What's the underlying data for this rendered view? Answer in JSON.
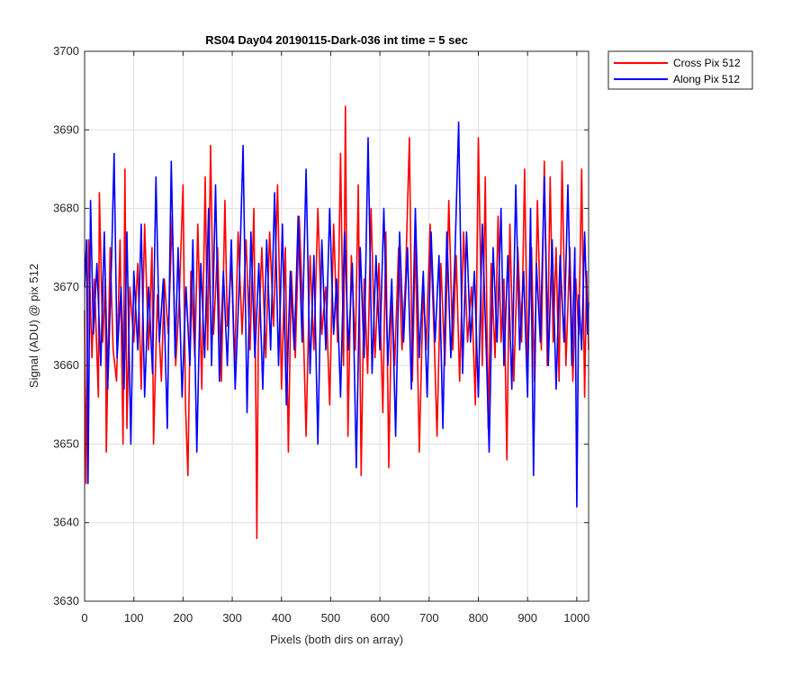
{
  "chart_data": {
    "type": "line",
    "title": "RS04 Day04 20190115-Dark-036 int time = 5 sec",
    "xlabel": "Pixels (both dirs on array)",
    "ylabel": "Signal (ADU) @ pix 512",
    "xlim": [
      0,
      1024
    ],
    "ylim": [
      3630,
      3700
    ],
    "xticks": [
      0,
      100,
      200,
      300,
      400,
      500,
      600,
      700,
      800,
      900,
      1000
    ],
    "yticks": [
      3630,
      3640,
      3650,
      3660,
      3670,
      3680,
      3690,
      3700
    ],
    "grid": true,
    "legend_position": "outside-top-right",
    "series": [
      {
        "name": "Cross Pix 512",
        "color": "#ff0000",
        "points": [
          [
            0,
            3667
          ],
          [
            3,
            3645
          ],
          [
            8,
            3676
          ],
          [
            15,
            3661
          ],
          [
            20,
            3671
          ],
          [
            28,
            3656
          ],
          [
            30,
            3682
          ],
          [
            37,
            3663
          ],
          [
            42,
            3671
          ],
          [
            44,
            3649
          ],
          [
            52,
            3675
          ],
          [
            58,
            3662
          ],
          [
            65,
            3658
          ],
          [
            72,
            3676
          ],
          [
            78,
            3650
          ],
          [
            82,
            3685
          ],
          [
            86,
            3652
          ],
          [
            92,
            3670
          ],
          [
            100,
            3663
          ],
          [
            108,
            3673
          ],
          [
            115,
            3657
          ],
          [
            122,
            3678
          ],
          [
            130,
            3662
          ],
          [
            137,
            3675
          ],
          [
            140,
            3650
          ],
          [
            148,
            3669
          ],
          [
            156,
            3658
          ],
          [
            162,
            3671
          ],
          [
            170,
            3664
          ],
          [
            178,
            3679
          ],
          [
            185,
            3660
          ],
          [
            192,
            3668
          ],
          [
            200,
            3683
          ],
          [
            205,
            3655
          ],
          [
            210,
            3646
          ],
          [
            216,
            3672
          ],
          [
            224,
            3661
          ],
          [
            230,
            3678
          ],
          [
            238,
            3657
          ],
          [
            245,
            3684
          ],
          [
            250,
            3662
          ],
          [
            256,
            3688
          ],
          [
            262,
            3664
          ],
          [
            270,
            3675
          ],
          [
            278,
            3658
          ],
          [
            285,
            3681
          ],
          [
            290,
            3665
          ],
          [
            298,
            3673
          ],
          [
            305,
            3660
          ],
          [
            312,
            3677
          ],
          [
            320,
            3664
          ],
          [
            328,
            3676
          ],
          [
            336,
            3662
          ],
          [
            344,
            3680
          ],
          [
            348,
            3655
          ],
          [
            350,
            3638
          ],
          [
            353,
            3663
          ],
          [
            360,
            3675
          ],
          [
            368,
            3661
          ],
          [
            376,
            3677
          ],
          [
            384,
            3665
          ],
          [
            392,
            3683
          ],
          [
            400,
            3657
          ],
          [
            408,
            3675
          ],
          [
            414,
            3649
          ],
          [
            420,
            3672
          ],
          [
            428,
            3661
          ],
          [
            436,
            3679
          ],
          [
            444,
            3666
          ],
          [
            450,
            3651
          ],
          [
            458,
            3674
          ],
          [
            466,
            3662
          ],
          [
            474,
            3680
          ],
          [
            482,
            3664
          ],
          [
            490,
            3670
          ],
          [
            498,
            3655
          ],
          [
            506,
            3678
          ],
          [
            514,
            3663
          ],
          [
            520,
            3687
          ],
          [
            526,
            3660
          ],
          [
            530,
            3693
          ],
          [
            535,
            3651
          ],
          [
            542,
            3674
          ],
          [
            550,
            3662
          ],
          [
            556,
            3683
          ],
          [
            562,
            3646
          ],
          [
            568,
            3671
          ],
          [
            575,
            3659
          ],
          [
            582,
            3680
          ],
          [
            590,
            3661
          ],
          [
            598,
            3673
          ],
          [
            606,
            3654
          ],
          [
            612,
            3677
          ],
          [
            618,
            3647
          ],
          [
            624,
            3669
          ],
          [
            630,
            3660
          ],
          [
            638,
            3675
          ],
          [
            645,
            3662
          ],
          [
            652,
            3671
          ],
          [
            660,
            3689
          ],
          [
            666,
            3658
          ],
          [
            672,
            3676
          ],
          [
            680,
            3649
          ],
          [
            688,
            3670
          ],
          [
            694,
            3662
          ],
          [
            702,
            3678
          ],
          [
            710,
            3664
          ],
          [
            716,
            3651
          ],
          [
            724,
            3673
          ],
          [
            732,
            3660
          ],
          [
            740,
            3681
          ],
          [
            748,
            3662
          ],
          [
            755,
            3674
          ],
          [
            762,
            3658
          ],
          [
            770,
            3677
          ],
          [
            778,
            3663
          ],
          [
            786,
            3670
          ],
          [
            794,
            3655
          ],
          [
            800,
            3689
          ],
          [
            808,
            3660
          ],
          [
            814,
            3684
          ],
          [
            820,
            3652
          ],
          [
            826,
            3673
          ],
          [
            834,
            3661
          ],
          [
            840,
            3679
          ],
          [
            846,
            3663
          ],
          [
            852,
            3671
          ],
          [
            858,
            3648
          ],
          [
            864,
            3678
          ],
          [
            872,
            3658
          ],
          [
            880,
            3675
          ],
          [
            888,
            3663
          ],
          [
            894,
            3685
          ],
          [
            900,
            3660
          ],
          [
            908,
            3675
          ],
          [
            914,
            3658
          ],
          [
            920,
            3681
          ],
          [
            928,
            3662
          ],
          [
            934,
            3686
          ],
          [
            940,
            3660
          ],
          [
            946,
            3684
          ],
          [
            952,
            3663
          ],
          [
            958,
            3675
          ],
          [
            964,
            3658
          ],
          [
            970,
            3686
          ],
          [
            978,
            3660
          ],
          [
            986,
            3675
          ],
          [
            992,
            3658
          ],
          [
            998,
            3671
          ],
          [
            1004,
            3664
          ],
          [
            1010,
            3685
          ],
          [
            1016,
            3656
          ],
          [
            1020,
            3672
          ],
          [
            1024,
            3662
          ]
        ]
      },
      {
        "name": "Along Pix 512",
        "color": "#0000ff",
        "points": [
          [
            0,
            3670
          ],
          [
            4,
            3676
          ],
          [
            7,
            3645
          ],
          [
            12,
            3681
          ],
          [
            18,
            3664
          ],
          [
            25,
            3673
          ],
          [
            33,
            3660
          ],
          [
            40,
            3677
          ],
          [
            47,
            3657
          ],
          [
            55,
            3674
          ],
          [
            60,
            3687
          ],
          [
            66,
            3661
          ],
          [
            74,
            3670
          ],
          [
            80,
            3657
          ],
          [
            86,
            3677
          ],
          [
            94,
            3650
          ],
          [
            100,
            3672
          ],
          [
            108,
            3662
          ],
          [
            115,
            3678
          ],
          [
            122,
            3656
          ],
          [
            130,
            3670
          ],
          [
            138,
            3659
          ],
          [
            145,
            3684
          ],
          [
            152,
            3663
          ],
          [
            160,
            3671
          ],
          [
            168,
            3652
          ],
          [
            176,
            3686
          ],
          [
            184,
            3661
          ],
          [
            190,
            3675
          ],
          [
            198,
            3656
          ],
          [
            206,
            3670
          ],
          [
            214,
            3660
          ],
          [
            220,
            3676
          ],
          [
            228,
            3649
          ],
          [
            236,
            3673
          ],
          [
            244,
            3661
          ],
          [
            252,
            3680
          ],
          [
            258,
            3660
          ],
          [
            266,
            3683
          ],
          [
            274,
            3658
          ],
          [
            282,
            3672
          ],
          [
            290,
            3660
          ],
          [
            298,
            3676
          ],
          [
            306,
            3657
          ],
          [
            314,
            3670
          ],
          [
            322,
            3688
          ],
          [
            330,
            3654
          ],
          [
            338,
            3677
          ],
          [
            346,
            3661
          ],
          [
            354,
            3673
          ],
          [
            362,
            3657
          ],
          [
            370,
            3676
          ],
          [
            378,
            3662
          ],
          [
            386,
            3682
          ],
          [
            394,
            3660
          ],
          [
            402,
            3678
          ],
          [
            410,
            3655
          ],
          [
            418,
            3672
          ],
          [
            426,
            3662
          ],
          [
            434,
            3679
          ],
          [
            442,
            3663
          ],
          [
            450,
            3685
          ],
          [
            458,
            3659
          ],
          [
            466,
            3674
          ],
          [
            474,
            3650
          ],
          [
            482,
            3676
          ],
          [
            490,
            3662
          ],
          [
            498,
            3680
          ],
          [
            506,
            3664
          ],
          [
            512,
            3671
          ],
          [
            520,
            3656
          ],
          [
            528,
            3677
          ],
          [
            536,
            3662
          ],
          [
            544,
            3673
          ],
          [
            552,
            3647
          ],
          [
            560,
            3675
          ],
          [
            568,
            3661
          ],
          [
            576,
            3689
          ],
          [
            584,
            3659
          ],
          [
            592,
            3674
          ],
          [
            600,
            3662
          ],
          [
            608,
            3680
          ],
          [
            616,
            3660
          ],
          [
            624,
            3671
          ],
          [
            632,
            3651
          ],
          [
            640,
            3677
          ],
          [
            648,
            3663
          ],
          [
            656,
            3675
          ],
          [
            664,
            3657
          ],
          [
            672,
            3680
          ],
          [
            680,
            3661
          ],
          [
            688,
            3672
          ],
          [
            696,
            3656
          ],
          [
            704,
            3677
          ],
          [
            712,
            3663
          ],
          [
            720,
            3674
          ],
          [
            728,
            3652
          ],
          [
            736,
            3677
          ],
          [
            744,
            3661
          ],
          [
            752,
            3673
          ],
          [
            760,
            3691
          ],
          [
            768,
            3659
          ],
          [
            776,
            3677
          ],
          [
            784,
            3663
          ],
          [
            792,
            3672
          ],
          [
            800,
            3656
          ],
          [
            808,
            3678
          ],
          [
            816,
            3662
          ],
          [
            822,
            3649
          ],
          [
            830,
            3675
          ],
          [
            838,
            3663
          ],
          [
            846,
            3680
          ],
          [
            852,
            3660
          ],
          [
            860,
            3674
          ],
          [
            868,
            3657
          ],
          [
            876,
            3683
          ],
          [
            884,
            3662
          ],
          [
            892,
            3672
          ],
          [
            900,
            3656
          ],
          [
            906,
            3680
          ],
          [
            912,
            3646
          ],
          [
            918,
            3673
          ],
          [
            926,
            3663
          ],
          [
            934,
            3684
          ],
          [
            942,
            3660
          ],
          [
            950,
            3676
          ],
          [
            958,
            3657
          ],
          [
            966,
            3674
          ],
          [
            974,
            3663
          ],
          [
            982,
            3683
          ],
          [
            990,
            3660
          ],
          [
            996,
            3675
          ],
          [
            1000,
            3642
          ],
          [
            1004,
            3669
          ],
          [
            1010,
            3662
          ],
          [
            1016,
            3677
          ],
          [
            1022,
            3664
          ],
          [
            1024,
            3668
          ]
        ]
      }
    ]
  }
}
